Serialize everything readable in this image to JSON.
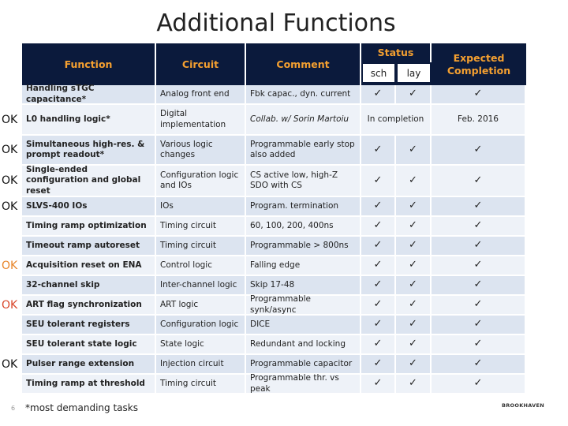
{
  "title": "Additional Functions",
  "header": {
    "function": "Function",
    "circuit": "Circuit",
    "comment": "Comment",
    "status": "Status",
    "sch": "sch",
    "lay": "lay",
    "completion": "Expected Completion"
  },
  "rows": [
    {
      "cells": [
        "Handling sTGC capacitance*",
        "Analog front end",
        "Fbk capac., dyn. current",
        "✓",
        "✓",
        "✓"
      ]
    },
    {
      "ok": "OK",
      "cells": [
        "L0 handling logic*",
        "Digital implementation",
        "Collab. w/ Sorin Martoiu",
        "In completion",
        "Feb. 2016"
      ]
    },
    {
      "ok": "OK",
      "cells": [
        "Simultaneous high-res. & prompt readout*",
        "Various logic changes",
        "Programmable early stop also added",
        "✓",
        "✓",
        "✓"
      ]
    },
    {
      "ok": "OK",
      "cells": [
        "Single-ended configuration and global reset",
        "Configuration logic and IOs",
        "CS active low, high-Z SDO with CS",
        "✓",
        "✓",
        "✓"
      ]
    },
    {
      "ok": "OK",
      "cells": [
        "SLVS-400 IOs",
        "IOs",
        "Program. termination",
        "✓",
        "✓",
        "✓"
      ]
    },
    {
      "cells": [
        "Timing ramp optimization",
        "Timing circuit",
        "60, 100, 200, 400ns",
        "✓",
        "✓",
        "✓"
      ]
    },
    {
      "cells": [
        "Timeout ramp autoreset",
        "Timing circuit",
        "Programmable > 800ns",
        "✓",
        "✓",
        "✓"
      ]
    },
    {
      "ok": "OK",
      "ok_color": "#e8852a",
      "cells": [
        "Acquisition reset on ENA",
        "Control logic",
        "Falling edge",
        "✓",
        "✓",
        "✓"
      ]
    },
    {
      "cells": [
        "32-channel skip",
        "Inter-channel logic",
        "Skip 17-48",
        "✓",
        "✓",
        "✓"
      ]
    },
    {
      "ok": "OK",
      "ok_color": "#d9472b",
      "cells": [
        "ART flag synchronization",
        "ART logic",
        "Programmable synk/async",
        "✓",
        "✓",
        "✓"
      ]
    },
    {
      "cells": [
        "SEU tolerant registers",
        "Configuration logic",
        "DICE",
        "✓",
        "✓",
        "✓"
      ]
    },
    {
      "cells": [
        "SEU tolerant state logic",
        "State logic",
        "Redundant and locking",
        "✓",
        "✓",
        "✓"
      ]
    },
    {
      "ok": "OK",
      "cells": [
        "Pulser range extension",
        "Injection circuit",
        "Programmable capacitor",
        "✓",
        "✓",
        "✓"
      ]
    },
    {
      "cells": [
        "Timing ramp at threshold",
        "Timing circuit",
        "Programmable thr. vs peak",
        "✓",
        "✓",
        "✓"
      ]
    }
  ],
  "footnote": "*most demanding tasks",
  "page_number": "6",
  "logo": "BROOKHAVEN"
}
